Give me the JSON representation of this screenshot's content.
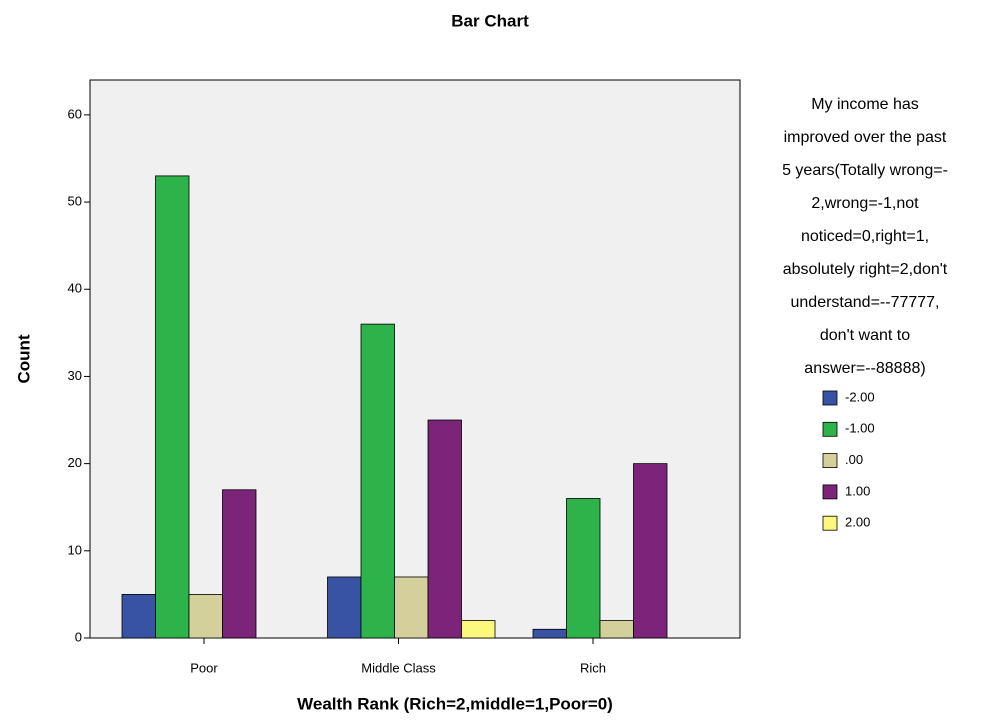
{
  "chart_data": {
    "type": "bar",
    "title": "Bar Chart",
    "x_label": "Wealth Rank (Rich=2,middle=1,Poor=0)",
    "y_label": "Count",
    "legend_title": [
      "My income has",
      "improved over the past",
      "5 years(Totally wrong=-",
      "2,wrong=-1,not",
      "noticed=0,right=1,",
      "absolutely right=2,don't",
      "understand=--77777,",
      "don't want to",
      "answer=--88888)"
    ],
    "categories": [
      "Poor",
      "Middle Class",
      "Rich"
    ],
    "series": [
      {
        "name": "-2.00",
        "color": "#3953a4",
        "values": [
          5,
          7,
          1
        ]
      },
      {
        "name": "-1.00",
        "color": "#2db34a",
        "values": [
          53,
          36,
          16
        ]
      },
      {
        "name": ".00",
        "color": "#d4d09b",
        "values": [
          5,
          7,
          2
        ]
      },
      {
        "name": "1.00",
        "color": "#7b2479",
        "values": [
          17,
          25,
          20
        ]
      },
      {
        "name": "2.00",
        "color": "#fbf87d",
        "values": [
          0,
          2,
          0
        ]
      }
    ],
    "ylim": [
      0,
      64
    ],
    "yticks": [
      0,
      10,
      20,
      30,
      40,
      50,
      60
    ]
  }
}
